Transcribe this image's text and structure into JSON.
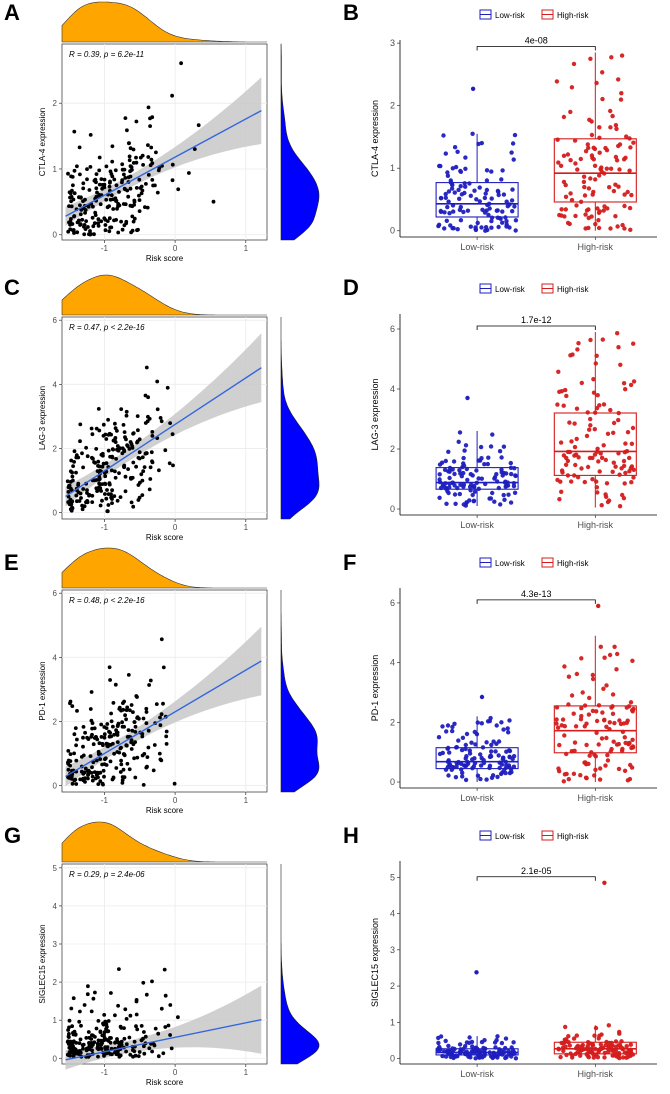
{
  "chart_data": [
    {
      "panel": "A",
      "type": "scatter",
      "ylabel": "CTLA-4 expression",
      "xlabel": "Risk score",
      "stat_label": "R = 0.39, p = 6.2e-11",
      "xlim": [
        -1.6,
        1.3
      ],
      "ylim": [
        -0.08,
        2.9
      ],
      "xticks": [
        -1,
        0,
        1
      ],
      "yticks": [
        0,
        1,
        2
      ],
      "fit": {
        "intercept": 1.18,
        "slope": 0.58
      },
      "n_points": 240,
      "seed": 11
    },
    {
      "panel": "B",
      "type": "box",
      "ylabel": "CTLA-4 expression",
      "categories": [
        "Low-risk",
        "High-risk"
      ],
      "legend": [
        "Low-risk",
        "High-risk"
      ],
      "ylim": [
        -0.1,
        3.05
      ],
      "yticks": [
        0,
        1,
        2,
        3
      ],
      "p_value": "4e-08",
      "boxes": [
        {
          "q1": 0.22,
          "median": 0.43,
          "q3": 0.77,
          "wlo": 0.0,
          "whi": 1.55,
          "max": 2.27
        },
        {
          "q1": 0.46,
          "median": 0.92,
          "q3": 1.47,
          "wlo": 0.0,
          "whi": 2.85,
          "max": 2.85
        }
      ],
      "seed": 21
    },
    {
      "panel": "C",
      "type": "scatter",
      "ylabel": "LAG-3 expression",
      "xlabel": "Risk score",
      "stat_label": "R = 0.47, p < 2.2e-16",
      "xlim": [
        -1.6,
        1.3
      ],
      "ylim": [
        -0.2,
        6.1
      ],
      "xticks": [
        -1,
        0,
        1
      ],
      "yticks": [
        0,
        2,
        4,
        6
      ],
      "fit": {
        "intercept": 2.75,
        "slope": 1.45
      },
      "n_points": 240,
      "seed": 31
    },
    {
      "panel": "D",
      "type": "box",
      "ylabel": "LAG-3 expression",
      "categories": [
        "Low-risk",
        "High-risk"
      ],
      "legend": [
        "Low-risk",
        "High-risk"
      ],
      "ylim": [
        -0.2,
        6.5
      ],
      "yticks": [
        0,
        2,
        4,
        6
      ],
      "p_value": "1.7e-12",
      "boxes": [
        {
          "q1": 0.66,
          "median": 0.88,
          "q3": 1.38,
          "wlo": 0.1,
          "whi": 2.6,
          "max": 3.7
        },
        {
          "q1": 1.12,
          "median": 1.92,
          "q3": 3.2,
          "wlo": 0.05,
          "whi": 5.9,
          "max": 5.9
        }
      ],
      "seed": 41
    },
    {
      "panel": "E",
      "type": "scatter",
      "ylabel": "PD-1 expression",
      "xlabel": "Risk score",
      "stat_label": "R = 0.48, p < 2.2e-16",
      "xlim": [
        -1.6,
        1.3
      ],
      "ylim": [
        -0.2,
        6.1
      ],
      "xticks": [
        -1,
        0,
        1
      ],
      "yticks": [
        0,
        2,
        4,
        6
      ],
      "fit": {
        "intercept": 2.3,
        "slope": 1.3
      },
      "n_points": 240,
      "seed": 51
    },
    {
      "panel": "F",
      "type": "box",
      "ylabel": "PD-1 expression",
      "categories": [
        "Low-risk",
        "High-risk"
      ],
      "legend": [
        "Low-risk",
        "High-risk"
      ],
      "ylim": [
        -0.2,
        6.5
      ],
      "yticks": [
        0,
        2,
        4,
        6
      ],
      "p_value": "4.3e-13",
      "boxes": [
        {
          "q1": 0.45,
          "median": 0.68,
          "q3": 1.15,
          "wlo": 0.0,
          "whi": 2.2,
          "max": 2.85
        },
        {
          "q1": 0.98,
          "median": 1.72,
          "q3": 2.55,
          "wlo": 0.0,
          "whi": 4.9,
          "max": 5.9
        }
      ],
      "seed": 61
    },
    {
      "panel": "G",
      "type": "scatter",
      "ylabel": "SIGLEC15 expression",
      "xlabel": "Risk score",
      "stat_label": "R = 0.29, p = 2.4e-06",
      "xlim": [
        -1.6,
        1.3
      ],
      "ylim": [
        -0.15,
        5.1
      ],
      "xticks": [
        -1,
        0,
        1
      ],
      "yticks": [
        0,
        1,
        2,
        3,
        4,
        5
      ],
      "fit": {
        "intercept": 0.55,
        "slope": 0.38
      },
      "n_points": 240,
      "seed": 71
    },
    {
      "panel": "H",
      "type": "box",
      "ylabel": "SIGLEC15 expression",
      "categories": [
        "Low-risk",
        "High-risk"
      ],
      "legend": [
        "Low-risk",
        "High-risk"
      ],
      "ylim": [
        -0.15,
        5.45
      ],
      "yticks": [
        0,
        1,
        2,
        3,
        4,
        5
      ],
      "p_value": "2.1e-05",
      "boxes": [
        {
          "q1": 0.1,
          "median": 0.17,
          "q3": 0.27,
          "wlo": 0.0,
          "whi": 0.62,
          "max": 2.38
        },
        {
          "q1": 0.13,
          "median": 0.27,
          "q3": 0.45,
          "wlo": 0.0,
          "whi": 0.92,
          "max": 4.85
        }
      ],
      "seed": 81
    }
  ],
  "colors": {
    "low": "#1f1fbf",
    "high": "#d41c1c",
    "fit": "#3366dd",
    "band": "#c8c8c8",
    "density_top": "#ffa500",
    "density_right": "#0000ff",
    "panel_bg": "#ffffff",
    "grid": "#ebebeb"
  }
}
